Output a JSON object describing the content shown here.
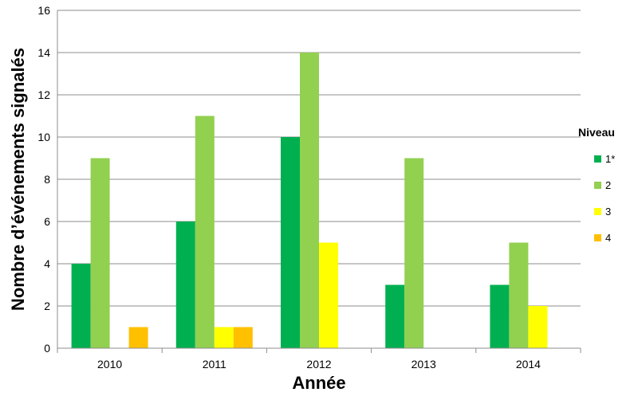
{
  "chart_data": {
    "type": "bar",
    "categories": [
      "2010",
      "2011",
      "2012",
      "2013",
      "2014"
    ],
    "series": [
      {
        "name": "1*",
        "color": "#00b050",
        "values": [
          4,
          6,
          10,
          3,
          3
        ]
      },
      {
        "name": "2",
        "color": "#92d050",
        "values": [
          9,
          11,
          14,
          9,
          5
        ]
      },
      {
        "name": "3",
        "color": "#ffff00",
        "values": [
          0,
          1,
          5,
          0,
          2
        ]
      },
      {
        "name": "4",
        "color": "#ffc000",
        "values": [
          1,
          1,
          0,
          0,
          0
        ]
      }
    ],
    "xlabel": "Année",
    "ylabel": "Nombre d’événements signalés",
    "ylim": [
      0,
      16
    ],
    "yticks": [
      "0",
      "2",
      "4",
      "6",
      "8",
      "10",
      "12",
      "14",
      "16"
    ],
    "grid": true,
    "legend": {
      "title": "Niveau",
      "position": "right"
    }
  }
}
